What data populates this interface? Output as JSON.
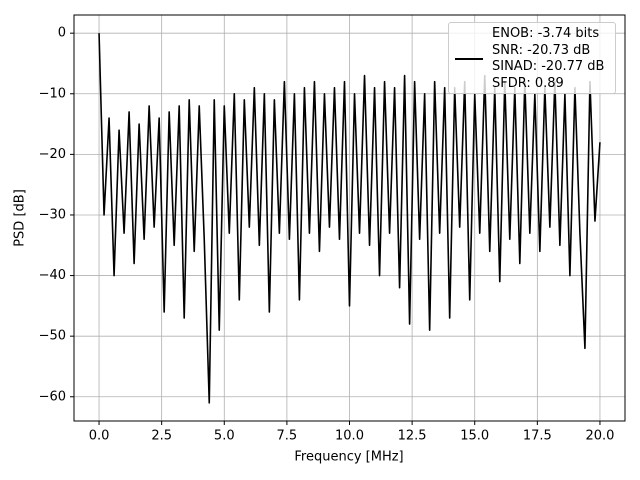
{
  "chart_data": {
    "type": "line",
    "xlabel": "Frequency [MHz]",
    "ylabel": "PSD [dB]",
    "xlim": [
      -1,
      21
    ],
    "ylim": [
      -64,
      3
    ],
    "xticks": [
      {
        "value": 0,
        "label": "0.0"
      },
      2.5,
      {
        "value": 5,
        "label": "5.0"
      },
      7.5,
      {
        "value": 10,
        "label": "10.0"
      },
      12.5,
      {
        "value": 15,
        "label": "15.0"
      },
      17.5,
      {
        "value": 20,
        "label": "20.0"
      }
    ],
    "yticks": [
      0,
      {
        "value": -10,
        "label": "−10"
      },
      {
        "value": -20,
        "label": "−20"
      },
      {
        "value": -30,
        "label": "−30"
      },
      {
        "value": -40,
        "label": "−40"
      },
      {
        "value": -50,
        "label": "−50"
      },
      {
        "value": -60,
        "label": "−60"
      }
    ],
    "grid": true,
    "legend": "upper right",
    "x": [
      0,
      0.2,
      0.4,
      0.6,
      0.8,
      1,
      1.2,
      1.4,
      1.6,
      1.8,
      2,
      2.2,
      2.4,
      2.6,
      2.8,
      3,
      3.2,
      3.4,
      3.6,
      3.8,
      4,
      4.2,
      4.4,
      4.6,
      4.8,
      5,
      5.2,
      5.4,
      5.6,
      5.8,
      6,
      6.2,
      6.4,
      6.6,
      6.8,
      7,
      7.2,
      7.4,
      7.6,
      7.8,
      8,
      8.2,
      8.4,
      8.6,
      8.8,
      9,
      9.2,
      9.4,
      9.6,
      9.8,
      10,
      10.2,
      10.4,
      10.6,
      10.8,
      11,
      11.2,
      11.4,
      11.6,
      11.8,
      12,
      12.2,
      12.4,
      12.6,
      12.8,
      13,
      13.2,
      13.4,
      13.6,
      13.8,
      14,
      14.2,
      14.4,
      14.6,
      14.8,
      15,
      15.2,
      15.4,
      15.6,
      15.8,
      16,
      16.2,
      16.4,
      16.6,
      16.8,
      17,
      17.2,
      17.4,
      17.6,
      17.8,
      18,
      18.2,
      18.4,
      18.6,
      18.8,
      19,
      19.2,
      19.4,
      19.6,
      19.8,
      20
    ],
    "series": [
      {
        "name": "ENOB: -3.74 bits\nSNR: -20.73 dB\nSINAD: -20.77 dB\nSFDR: 0.89",
        "color": "#000000",
        "values": [
          0,
          -30,
          -14,
          -40,
          -16,
          -33,
          -13,
          -38,
          -15,
          -34,
          -12,
          -32,
          -14,
          -46,
          -13,
          -35,
          -12,
          -47,
          -11,
          -36,
          -12,
          -34,
          -61,
          -11,
          -49,
          -12,
          -33,
          -10,
          -44,
          -11,
          -32,
          -9,
          -35,
          -10,
          -46,
          -11,
          -33,
          -8,
          -34,
          -10,
          -44,
          -9,
          -33,
          -8,
          -36,
          -10,
          -32,
          -9,
          -34,
          -8,
          -45,
          -10,
          -33,
          -7,
          -35,
          -9,
          -40,
          -8,
          -33,
          -9,
          -42,
          -7,
          -48,
          -8,
          -34,
          -10,
          -49,
          -8,
          -33,
          -9,
          -47,
          -9,
          -32,
          -8,
          -44,
          -10,
          -33,
          -7,
          -36,
          -9,
          -41,
          -8,
          -34,
          -9,
          -38,
          -8,
          -33,
          -10,
          -36,
          -9,
          -32,
          -8,
          -35,
          -10,
          -40,
          -9,
          -33,
          -52,
          -8,
          -31,
          -18
        ]
      }
    ]
  }
}
